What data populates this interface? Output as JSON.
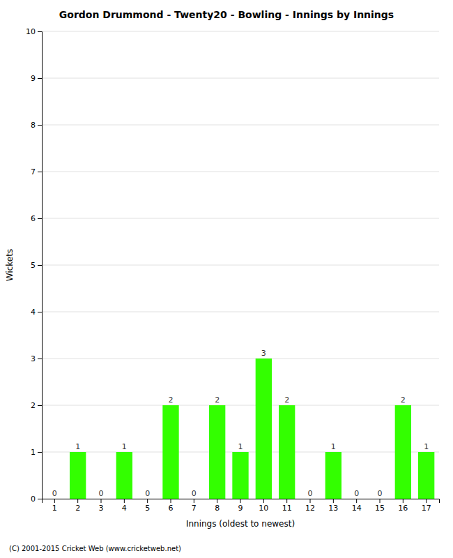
{
  "chart_data": {
    "type": "bar",
    "title": "Gordon Drummond - Twenty20 - Bowling - Innings by Innings",
    "xlabel": "Innings (oldest to newest)",
    "ylabel": "Wickets",
    "categories": [
      "1",
      "2",
      "3",
      "4",
      "5",
      "6",
      "7",
      "8",
      "9",
      "10",
      "11",
      "12",
      "13",
      "14",
      "15",
      "16",
      "17"
    ],
    "values": [
      0,
      1,
      0,
      1,
      0,
      2,
      0,
      2,
      1,
      3,
      2,
      0,
      1,
      0,
      0,
      2,
      1
    ],
    "color": "#33ff00",
    "ylim": [
      0,
      10
    ],
    "yticks": [
      0,
      1,
      2,
      3,
      4,
      5,
      6,
      7,
      8,
      9,
      10
    ],
    "grid": true,
    "data_labels": true,
    "footer": "(C) 2001-2015 Cricket Web (www.cricketweb.net)"
  }
}
